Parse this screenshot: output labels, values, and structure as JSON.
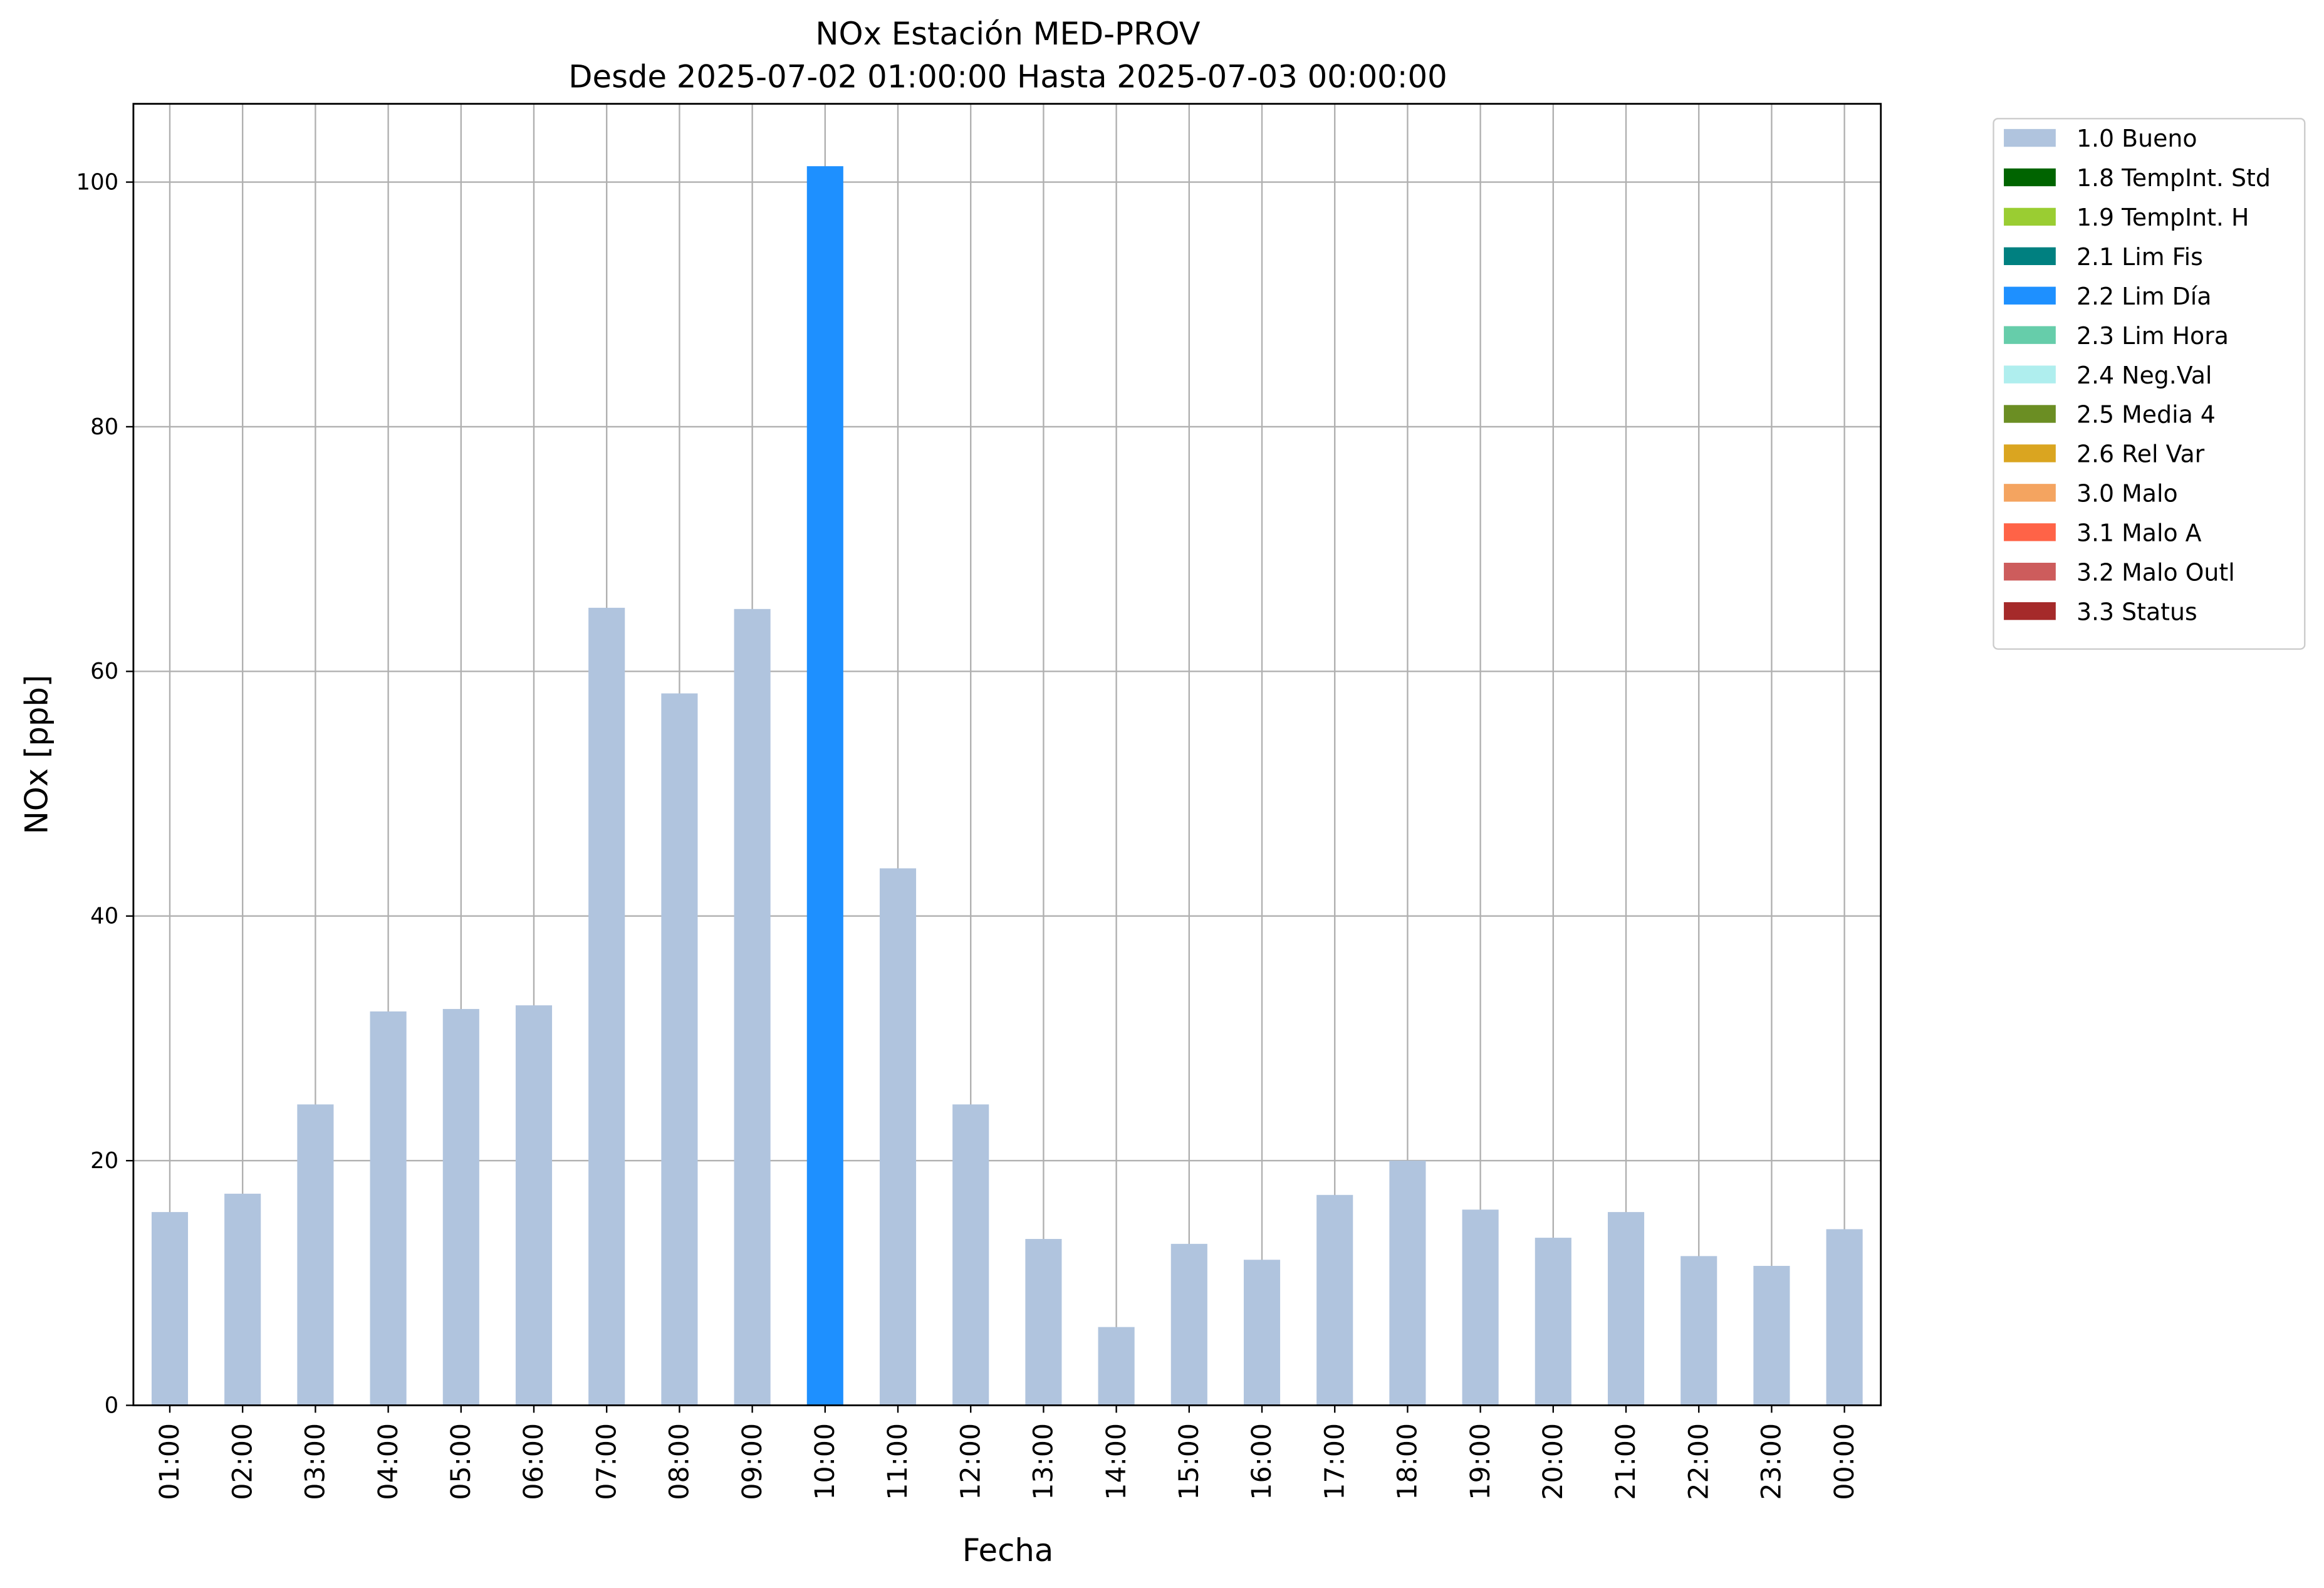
{
  "chart_data": {
    "type": "stacked_bar",
    "title": "NOx Estación MED-PROV",
    "subtitle": "Desde 2025-07-02 01:00:00 Hasta 2025-07-03 00:00:00",
    "x_label": "Fecha",
    "y_label": "NOx [ppb]",
    "categories": [
      "01:00",
      "02:00",
      "03:00",
      "04:00",
      "05:00",
      "06:00",
      "07:00",
      "08:00",
      "09:00",
      "10:00",
      "11:00",
      "12:00",
      "13:00",
      "14:00",
      "15:00",
      "16:00",
      "17:00",
      "18:00",
      "19:00",
      "20:00",
      "21:00",
      "22:00",
      "23:00",
      "00:00"
    ],
    "ylim": [
      0,
      106.4
    ],
    "yticks": [
      0,
      20,
      40,
      60,
      80,
      100
    ],
    "grid": true,
    "legend": "outside-right",
    "series": [
      {
        "name": "1.0 Bueno",
        "color": "#b0c4de",
        "values": [
          15.8,
          17.3,
          24.6,
          32.2,
          32.4,
          32.7,
          65.2,
          58.2,
          65.1,
          null,
          43.9,
          24.6,
          13.6,
          6.4,
          13.2,
          11.9,
          17.2,
          20.0,
          16.0,
          13.7,
          15.8,
          12.2,
          11.4,
          14.4
        ]
      },
      {
        "name": "1.8 TempInt. Std",
        "color": "#006400",
        "values": [
          null,
          null,
          null,
          null,
          null,
          null,
          null,
          null,
          null,
          null,
          null,
          null,
          null,
          null,
          null,
          null,
          null,
          null,
          null,
          null,
          null,
          null,
          null,
          null
        ]
      },
      {
        "name": "1.9 TempInt. H",
        "color": "#9acd32",
        "values": [
          null,
          null,
          null,
          null,
          null,
          null,
          null,
          null,
          null,
          null,
          null,
          null,
          null,
          null,
          null,
          null,
          null,
          null,
          null,
          null,
          null,
          null,
          null,
          null
        ]
      },
      {
        "name": "2.1 Lim Fis",
        "color": "#008080",
        "values": [
          null,
          null,
          null,
          null,
          null,
          null,
          null,
          null,
          null,
          null,
          null,
          null,
          null,
          null,
          null,
          null,
          null,
          null,
          null,
          null,
          null,
          null,
          null,
          null
        ]
      },
      {
        "name": "2.2 Lim Día",
        "color": "#1e90ff",
        "values": [
          null,
          null,
          null,
          null,
          null,
          null,
          null,
          null,
          null,
          101.3,
          null,
          null,
          null,
          null,
          null,
          null,
          null,
          null,
          null,
          null,
          null,
          null,
          null,
          null
        ]
      },
      {
        "name": "2.3 Lim Hora",
        "color": "#66cdaa",
        "values": [
          null,
          null,
          null,
          null,
          null,
          null,
          null,
          null,
          null,
          null,
          null,
          null,
          null,
          null,
          null,
          null,
          null,
          null,
          null,
          null,
          null,
          null,
          null,
          null
        ]
      },
      {
        "name": "2.4 Neg.Val",
        "color": "#afeeee",
        "values": [
          null,
          null,
          null,
          null,
          null,
          null,
          null,
          null,
          null,
          null,
          null,
          null,
          null,
          null,
          null,
          null,
          null,
          null,
          null,
          null,
          null,
          null,
          null,
          null
        ]
      },
      {
        "name": "2.5 Media 4",
        "color": "#6b8e23",
        "values": [
          null,
          null,
          null,
          null,
          null,
          null,
          null,
          null,
          null,
          null,
          null,
          null,
          null,
          null,
          null,
          null,
          null,
          null,
          null,
          null,
          null,
          null,
          null,
          null
        ]
      },
      {
        "name": "2.6 Rel Var",
        "color": "#daa520",
        "values": [
          null,
          null,
          null,
          null,
          null,
          null,
          null,
          null,
          null,
          null,
          null,
          null,
          null,
          null,
          null,
          null,
          null,
          null,
          null,
          null,
          null,
          null,
          null,
          null
        ]
      },
      {
        "name": "3.0 Malo",
        "color": "#f4a460",
        "values": [
          null,
          null,
          null,
          null,
          null,
          null,
          null,
          null,
          null,
          null,
          null,
          null,
          null,
          null,
          null,
          null,
          null,
          null,
          null,
          null,
          null,
          null,
          null,
          null
        ]
      },
      {
        "name": "3.1 Malo A",
        "color": "#ff6347",
        "values": [
          null,
          null,
          null,
          null,
          null,
          null,
          null,
          null,
          null,
          null,
          null,
          null,
          null,
          null,
          null,
          null,
          null,
          null,
          null,
          null,
          null,
          null,
          null,
          null
        ]
      },
      {
        "name": "3.2 Malo Outl",
        "color": "#cd5c5c",
        "values": [
          null,
          null,
          null,
          null,
          null,
          null,
          null,
          null,
          null,
          null,
          null,
          null,
          null,
          null,
          null,
          null,
          null,
          null,
          null,
          null,
          null,
          null,
          null,
          null
        ]
      },
      {
        "name": "3.3 Status",
        "color": "#a52a2a",
        "values": [
          null,
          null,
          null,
          null,
          null,
          null,
          null,
          null,
          null,
          null,
          null,
          null,
          null,
          null,
          null,
          null,
          null,
          null,
          null,
          null,
          null,
          null,
          null,
          null
        ]
      }
    ]
  }
}
